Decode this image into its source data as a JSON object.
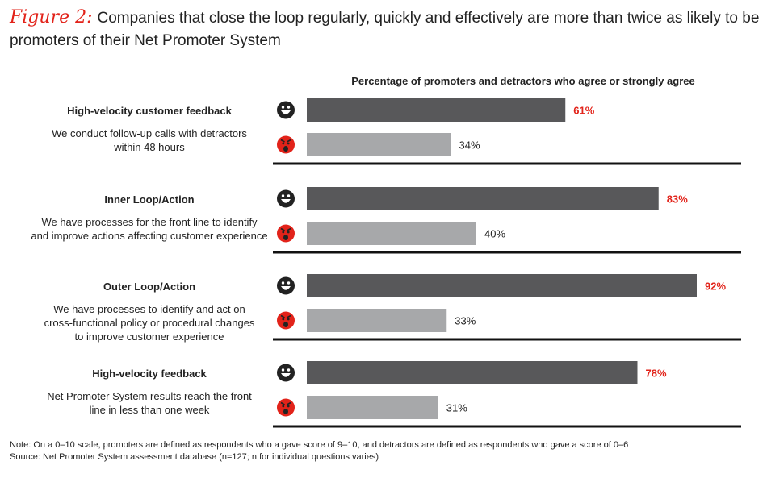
{
  "title": {
    "figure_label": "Figure 2:",
    "text": "Companies that close the loop regularly, quickly and effectively are more than twice as likely to be promoters of their Net Promoter System"
  },
  "chart_data": {
    "type": "bar",
    "orientation": "horizontal",
    "header": "Percentage of promoters and detractors who agree or strongly agree",
    "xlim": [
      0,
      100
    ],
    "series": [
      {
        "name": "Promoters",
        "icon": "smiley-face-icon",
        "color": "#58585a",
        "label_color": "#e2231a"
      },
      {
        "name": "Detractors",
        "icon": "angry-face-icon",
        "color": "#a7a8aa",
        "label_color": "#222222"
      }
    ],
    "categories": [
      {
        "heading": "High-velocity customer feedback",
        "description": "We conduct follow-up calls with detractors\nwithin 48 hours",
        "promoters": 61,
        "detractors": 34
      },
      {
        "heading": "Inner Loop/Action",
        "description": "We have processes for the front line to identify\nand improve actions affecting customer experience",
        "promoters": 83,
        "detractors": 40
      },
      {
        "heading": "Outer Loop/Action",
        "description": "We have processes to identify and act on\ncross-functional policy or procedural changes\nto improve customer experience",
        "promoters": 92,
        "detractors": 33
      },
      {
        "heading": "High-velocity feedback",
        "description": "Net Promoter System results reach the front\nline in less than one week",
        "promoters": 78,
        "detractors": 31
      }
    ],
    "value_suffix": "%"
  },
  "notes": {
    "note": "Note: On a 0–10 scale, promoters are defined as respondents who a gave score of 9–10, and detractors are defined as respondents who gave a score of 0–6",
    "source": "Source: Net Promoter System assessment database (n=127; n for individual questions varies)"
  },
  "colors": {
    "accent": "#e2231a",
    "dark_bar": "#58585a",
    "light_bar": "#a7a8aa",
    "divider": "#111111"
  }
}
